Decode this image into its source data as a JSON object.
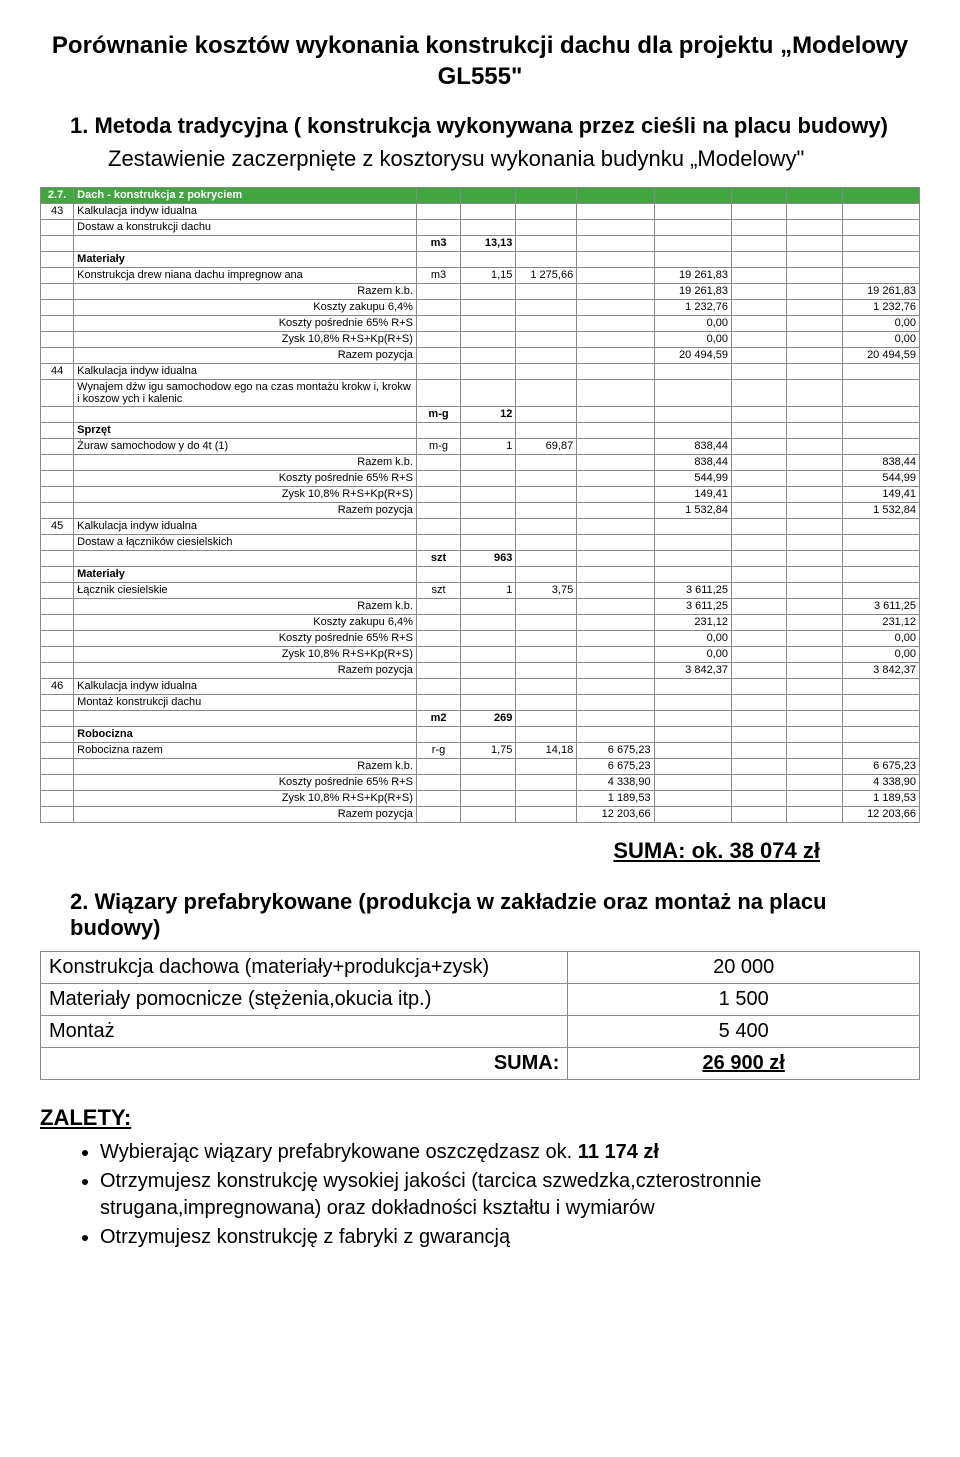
{
  "title": "Porównanie kosztów wykonania konstrukcji dachu dla projektu „Modelowy GL555\"",
  "method1": {
    "heading": "1. Metoda tradycyjna ( konstrukcja wykonywana przez cieśli na placu budowy)",
    "sub": "Zestawienie zaczerpnięte z kosztorysu wykonania budynku „Modelowy\""
  },
  "section_header": {
    "num": "2.7.",
    "text": "Dach - konstrukcja z pokryciem"
  },
  "rows43": {
    "lp": "43",
    "kalk": "Kalkulacja indyw idualna",
    "dostawa": "Dostaw a konstrukcji dachu",
    "unit1": "m3",
    "qty1": "13,13",
    "materialy": "Materiały",
    "konstr": "Konstrukcja drew niana dachu impregnow ana",
    "konstr_u": "m3",
    "konstr_q": "1,15",
    "konstr_p": "1 275,66",
    "konstr_v": "19 261,83",
    "razemkb": "Razem k.b.",
    "razemkb_v1": "19 261,83",
    "razemkb_v2": "19 261,83",
    "kz": "Koszty zakupu 6,4%",
    "kz_v1": "1 232,76",
    "kz_v2": "1 232,76",
    "kp": "Koszty pośrednie 65% R+S",
    "kp_v1": "0,00",
    "kp_v2": "0,00",
    "zysk": "Zysk 10,8% R+S+Kp(R+S)",
    "zysk_v1": "0,00",
    "zysk_v2": "0,00",
    "rp": "Razem pozycja",
    "rp_v1": "20 494,59",
    "rp_v2": "20 494,59"
  },
  "rows44": {
    "lp": "44",
    "kalk": "Kalkulacja indyw idualna",
    "wynajem": "Wynajem dźw igu samochodow ego na czas montażu krokw i, krokw i koszow ych i kalenic",
    "unit1": "m-g",
    "qty1": "12",
    "sprzet": "Sprzęt",
    "zuraw": "Żuraw samochodow y do 4t (1)",
    "zuraw_u": "m-g",
    "zuraw_q": "1",
    "zuraw_p": "69,87",
    "zuraw_v": "838,44",
    "razemkb": "Razem k.b.",
    "razemkb_v1": "838,44",
    "razemkb_v2": "838,44",
    "kp": "Koszty pośrednie 65% R+S",
    "kp_v1": "544,99",
    "kp_v2": "544,99",
    "zysk": "Zysk 10,8% R+S+Kp(R+S)",
    "zysk_v1": "149,41",
    "zysk_v2": "149,41",
    "rp": "Razem pozycja",
    "rp_v1": "1 532,84",
    "rp_v2": "1 532,84"
  },
  "rows45": {
    "lp": "45",
    "kalk": "Kalkulacja indyw idualna",
    "dostawa": "Dostaw a łączników ciesielskich",
    "unit1": "szt",
    "qty1": "963",
    "materialy": "Materiały",
    "lacznik": "Łącznik ciesielskie",
    "lacznik_u": "szt",
    "lacznik_q": "1",
    "lacznik_p": "3,75",
    "lacznik_v": "3 611,25",
    "razemkb": "Razem k.b.",
    "razemkb_v1": "3 611,25",
    "razemkb_v2": "3 611,25",
    "kz": "Koszty zakupu 6,4%",
    "kz_v1": "231,12",
    "kz_v2": "231,12",
    "kp": "Koszty pośrednie 65% R+S",
    "kp_v1": "0,00",
    "kp_v2": "0,00",
    "zysk": "Zysk 10,8% R+S+Kp(R+S)",
    "zysk_v1": "0,00",
    "zysk_v2": "0,00",
    "rp": "Razem pozycja",
    "rp_v1": "3 842,37",
    "rp_v2": "3 842,37"
  },
  "rows46": {
    "lp": "46",
    "kalk": "Kalkulacja indyw idualna",
    "montaz": "Montaż konstrukcji dachu",
    "unit1": "m2",
    "qty1": "269",
    "robocizna": "Robocizna",
    "robraz": "Robocizna razem",
    "rob_u": "r-g",
    "rob_q": "1,75",
    "rob_p": "14,18",
    "rob_v": "6 675,23",
    "razemkb": "Razem k.b.",
    "razemkb_v1": "6 675,23",
    "razemkb_v2": "6 675,23",
    "kp": "Koszty pośrednie 65% R+S",
    "kp_v1": "4 338,90",
    "kp_v2": "4 338,90",
    "zysk": "Zysk 10,8% R+S+Kp(R+S)",
    "zysk_v1": "1 189,53",
    "zysk_v2": "1 189,53",
    "rp": "Razem pozycja",
    "rp_v1": "12 203,66",
    "rp_v2": "12 203,66"
  },
  "suma1": "SUMA:  ok. 38 074 zł",
  "method2": {
    "heading": "2.  Wiązary prefabrykowane (produkcja w zakładzie oraz montaż na placu budowy)"
  },
  "summary": {
    "r1l": "Konstrukcja dachowa (materiały+produkcja+zysk)",
    "r1v": "20 000",
    "r2l": "Materiały pomocnicze (stężenia,okucia itp.)",
    "r2v": "1 500",
    "r3l": "Montaż",
    "r3v": "5 400",
    "r4l": "SUMA:",
    "r4v": "26 900 zł"
  },
  "benefits": {
    "title": "ZALETY:",
    "b1a": "Wybierając wiązary prefabrykowane oszczędzasz ok. ",
    "b1b": "11 174 zł",
    "b2": "Otrzymujesz konstrukcję wysokiej jakości (tarcica szwedzka,czterostronnie strugana,impregnowana) oraz dokładności kształtu i wymiarów",
    "b3": "Otrzymujesz konstrukcję z fabryki z gwarancją"
  }
}
